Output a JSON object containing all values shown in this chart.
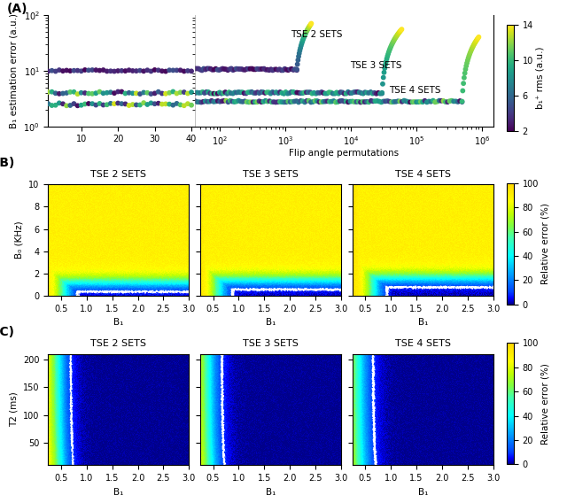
{
  "panel_A_label": "(A)",
  "panel_B_label": "(B)",
  "panel_C_label": "(C)",
  "sets_labels": [
    "TSE 2 SETS",
    "TSE 3 SETS",
    "TSE 4 SETS"
  ],
  "colorbar_B_label": "Relative error (%)",
  "colorbar_C_label": "Relative error (%)",
  "colorbar_A_label": "b₁⁺ rms (a.u.)",
  "colorbar_A_ticks": [
    2,
    6,
    10,
    14
  ],
  "colorbar_BC_ticks": [
    0,
    20,
    40,
    60,
    80,
    100
  ],
  "xlabel_A": "Flip angle permutations",
  "ylabel_A": "B₁ estimation error (a.u.)",
  "xlabel_BC": "B₁",
  "ylabel_B": "B₀ (KHz)",
  "ylabel_C": "T2 (ms)",
  "ylim_A": [
    1.0,
    100.0
  ],
  "title_fontsize": 8,
  "label_fontsize": 7.5,
  "tick_fontsize": 7,
  "background_color": "#ffffff",
  "cmap_BC_colors": [
    "#00008B",
    "#0000FF",
    "#0040FF",
    "#0080FF",
    "#00BFFF",
    "#00FFFF",
    "#40FFB0",
    "#80FF40",
    "#C0FF00",
    "#FFFF00",
    "#FFD700"
  ],
  "cmap_BC_positions": [
    0.0,
    0.05,
    0.1,
    0.2,
    0.3,
    0.4,
    0.55,
    0.65,
    0.75,
    0.85,
    1.0
  ]
}
